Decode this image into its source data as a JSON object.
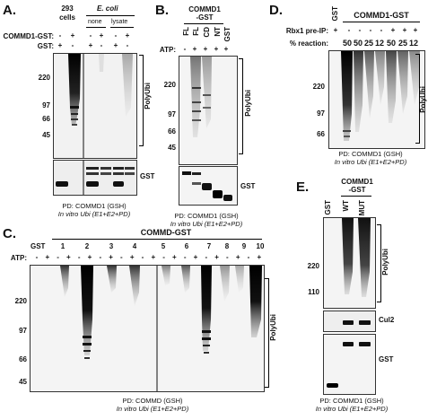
{
  "panelA": {
    "label": "A.",
    "cells_293": "293 cells",
    "ecoli": "E. coli",
    "none": "none",
    "lysate": "lysate",
    "row1_label": "COMMD1-GST:",
    "row2_label": "GST:",
    "row1_signs": [
      "-",
      "+",
      "-",
      "+",
      "-",
      "+"
    ],
    "row2_signs": [
      "+",
      "-",
      "+",
      "-",
      "+",
      "-"
    ],
    "markers": [
      "220",
      "97",
      "66",
      "45"
    ],
    "polyubi": "PolyUbi",
    "gst": "GST",
    "caption1": "PD: COMMD1 (GSH)",
    "caption2": "In vitro Ubi (E1+E2+PD)"
  },
  "panelB": {
    "label": "B.",
    "header": "COMMD1",
    "header2": "-GST",
    "lanes": [
      "FL",
      "FL",
      "CD",
      "NT",
      "GST"
    ],
    "atp_label": "ATP:",
    "atp_signs": [
      "-",
      "+",
      "+",
      "+",
      "+"
    ],
    "markers": [
      "220",
      "97",
      "66",
      "45"
    ],
    "polyubi": "PolyUbi",
    "gst": "GST",
    "caption1": "PD: COMMD1 (GSH)",
    "caption2": "In vitro Ubi (E1+E2+PD)"
  },
  "panelC": {
    "label": "C.",
    "header": "COMMD-GST",
    "gst": "GST",
    "lane_numbers": [
      "1",
      "2",
      "3",
      "4",
      "5",
      "6",
      "7",
      "8",
      "9",
      "10"
    ],
    "atp_label": "ATP:",
    "atp_signs": [
      "-",
      "+",
      "-",
      "+",
      "-",
      "+",
      "-",
      "+",
      "-",
      "+",
      "-",
      "+",
      "-",
      "+",
      "-",
      "+",
      "-",
      "+",
      "-",
      "+",
      "-",
      "+"
    ],
    "markers": [
      "220",
      "97",
      "66",
      "45"
    ],
    "polyubi": "PolyUbi",
    "caption1": "PD: COMMD (GSH)",
    "caption2": "In vitro Ubi (E1+E2+PD)"
  },
  "panelD": {
    "label": "D.",
    "gst": "GST",
    "header": "COMMD1-GST",
    "rbx_label": "Rbx1 pre-IP:",
    "rbx_signs": [
      "+",
      "-",
      "-",
      "-",
      "-",
      "+",
      "+",
      "+"
    ],
    "reaction_label": "% reaction:",
    "reaction_values": [
      "50",
      "50",
      "25",
      "12",
      "50",
      "25",
      "12"
    ],
    "markers": [
      "220",
      "97",
      "66"
    ],
    "polyubi": "PolyUbi",
    "caption1": "PD: COMMD1 (GSH)",
    "caption2": "In vitro Ubi (E1+E2+PD)"
  },
  "panelE": {
    "label": "E.",
    "header": "COMMD1",
    "header2": "-GST",
    "lanes": [
      "GST",
      "WT",
      "MUT"
    ],
    "markers": [
      "220",
      "110"
    ],
    "polyubi": "PolyUbi",
    "cul2": "Cul2",
    "gst": "GST",
    "caption1": "PD: COMMD1 (GSH)",
    "caption2": "In vitro Ubi (E1+E2+PD)"
  }
}
